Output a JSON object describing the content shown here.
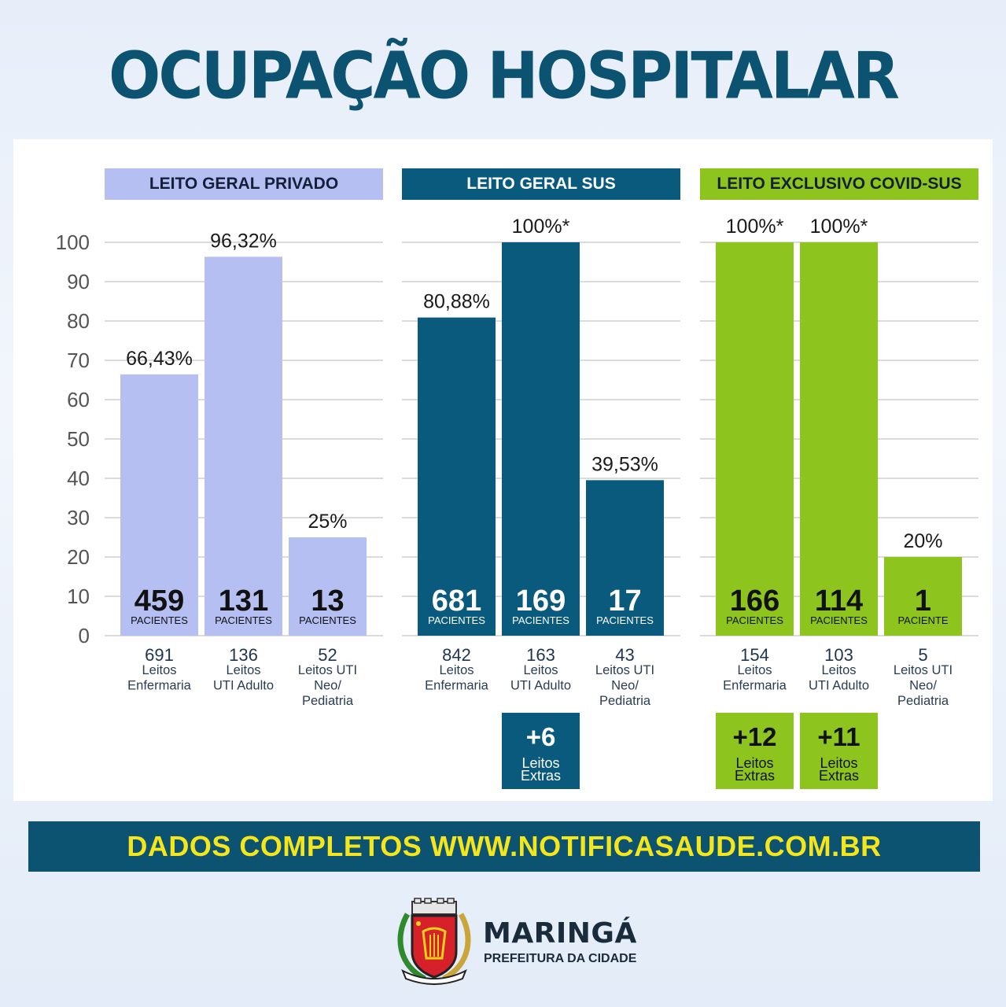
{
  "title": "OCUPAÇÃO HOSPITALAR",
  "colors": {
    "title": "#0c5271",
    "privado": "#b5bff2",
    "sus": "#0a5a7e",
    "covid": "#8dc51e",
    "footer_bg": "#0c5271",
    "footer_text": "#f5e51b",
    "grid": "#cfcfcf",
    "axis_text": "#555555"
  },
  "chart_data": {
    "type": "bar",
    "ylim": [
      0,
      100
    ],
    "yticks": [
      "0",
      "10",
      "20",
      "30",
      "40",
      "50",
      "60",
      "70",
      "80",
      "90",
      "100"
    ],
    "groups": [
      {
        "banner": "LEITO GERAL PRIVADO",
        "theme": "privado",
        "bars": [
          {
            "value": 66.43,
            "label": "66,43%",
            "patients": "459",
            "patients_label": "PACIENTES",
            "beds": "691",
            "desc": [
              "Leitos",
              "Enfermaria"
            ]
          },
          {
            "value": 96.32,
            "label": "96,32%",
            "patients": "131",
            "patients_label": "PACIENTES",
            "beds": "136",
            "desc": [
              "Leitos",
              "UTI Adulto"
            ]
          },
          {
            "value": 25,
            "label": "25%",
            "patients": "13",
            "patients_label": "PACIENTES",
            "beds": "52",
            "desc": [
              "Leitos UTI",
              "Neo/",
              "Pediatria"
            ]
          }
        ]
      },
      {
        "banner": "LEITO GERAL SUS",
        "theme": "sus",
        "bars": [
          {
            "value": 80.88,
            "label": "80,88%",
            "patients": "681",
            "patients_label": "PACIENTES",
            "beds": "842",
            "desc": [
              "Leitos",
              "Enfermaria"
            ]
          },
          {
            "value": 100,
            "label": "100%*",
            "patients": "169",
            "patients_label": "PACIENTES",
            "beds": "163",
            "desc": [
              "Leitos",
              "UTI Adulto"
            ],
            "extra": {
              "value": "+6",
              "desc": [
                "Leitos",
                "Extras"
              ]
            }
          },
          {
            "value": 39.53,
            "label": "39,53%",
            "patients": "17",
            "patients_label": "PACIENTES",
            "beds": "43",
            "desc": [
              "Leitos UTI",
              "Neo/",
              "Pediatria"
            ]
          }
        ]
      },
      {
        "banner": "LEITO EXCLUSIVO COVID-SUS",
        "theme": "covid",
        "bars": [
          {
            "value": 100,
            "label": "100%*",
            "patients": "166",
            "patients_label": "PACIENTES",
            "beds": "154",
            "desc": [
              "Leitos",
              "Enfermaria"
            ],
            "extra": {
              "value": "+12",
              "desc": [
                "Leitos",
                "Extras"
              ]
            }
          },
          {
            "value": 100,
            "label": "100%*",
            "patients": "114",
            "patients_label": "PACIENTES",
            "beds": "103",
            "desc": [
              "Leitos",
              "UTI Adulto"
            ],
            "extra": {
              "value": "+11",
              "desc": [
                "Leitos",
                "Extras"
              ]
            }
          },
          {
            "value": 20,
            "label": "20%",
            "patients": "1",
            "patients_label": "PACIENTE",
            "beds": "5",
            "desc": [
              "Leitos UTI",
              "Neo/",
              "Pediatria"
            ]
          }
        ]
      }
    ]
  },
  "footer": {
    "text": "DADOS COMPLETOS  WWW.NOTIFICASAUDE.COM.BR"
  },
  "logo": {
    "icon": "maringa-coat-of-arms-icon",
    "name": "MARINGÁ",
    "subtitle": "PREFEITURA DA CIDADE"
  }
}
